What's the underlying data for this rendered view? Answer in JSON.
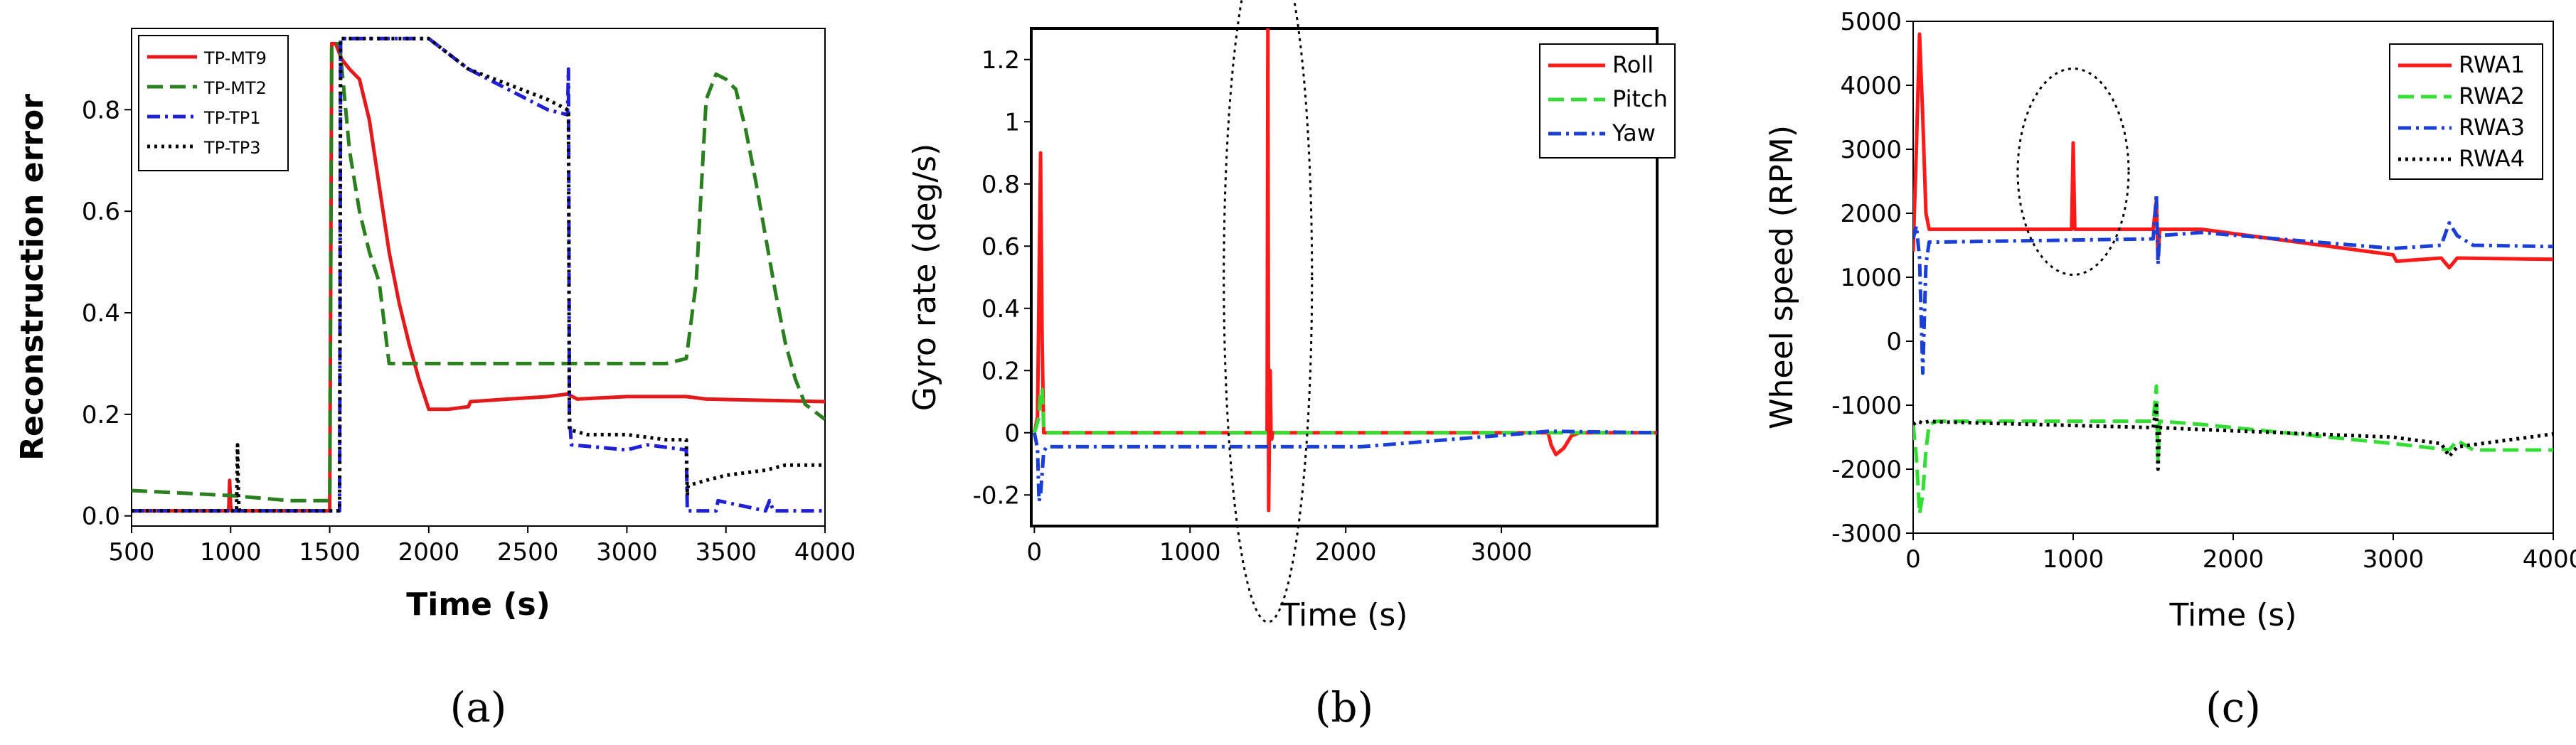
{
  "chart_data": [
    {
      "type": "line",
      "caption": "(a)",
      "title": "",
      "xlabel": "Time  (s)",
      "ylabel": "Reconstruction error",
      "xlim": [
        500,
        4000
      ],
      "ylim": [
        -0.02,
        0.96
      ],
      "xticks": [
        "500",
        "1000",
        "1500",
        "2000",
        "2500",
        "3000",
        "3500",
        "4000"
      ],
      "yticks": [
        "0.0",
        "0.2",
        "0.4",
        "0.6",
        "0.8"
      ],
      "legend_position": "top-left",
      "series": [
        {
          "name": "TP-MT9",
          "color": "#e31a1c",
          "dash": "solid",
          "x": [
            500,
            990,
            995,
            1000,
            1005,
            1010,
            1500,
            1510,
            1530,
            1560,
            1600,
            1650,
            1700,
            1750,
            1800,
            1850,
            1900,
            1950,
            2000,
            2100,
            2200,
            2210,
            2400,
            2600,
            2700,
            2750,
            3000,
            3300,
            3400,
            4000
          ],
          "y": [
            0.01,
            0.01,
            0.07,
            0.02,
            0.01,
            0.01,
            0.01,
            0.93,
            0.93,
            0.9,
            0.88,
            0.86,
            0.78,
            0.65,
            0.52,
            0.42,
            0.34,
            0.27,
            0.21,
            0.21,
            0.215,
            0.225,
            0.23,
            0.235,
            0.24,
            0.23,
            0.235,
            0.235,
            0.23,
            0.225
          ]
        },
        {
          "name": "TP-MT2",
          "color": "#2a7f1f",
          "dash": "dashed",
          "x": [
            500,
            1000,
            1300,
            1500,
            1510,
            1550,
            1600,
            1650,
            1700,
            1750,
            1800,
            2000,
            2500,
            3200,
            3300,
            3350,
            3400,
            3450,
            3500,
            3550,
            3600,
            3650,
            3700,
            3750,
            3800,
            3850,
            3900,
            4000
          ],
          "y": [
            0.05,
            0.04,
            0.03,
            0.03,
            0.93,
            0.93,
            0.72,
            0.6,
            0.52,
            0.46,
            0.3,
            0.3,
            0.3,
            0.3,
            0.31,
            0.46,
            0.82,
            0.87,
            0.86,
            0.84,
            0.76,
            0.66,
            0.55,
            0.44,
            0.34,
            0.27,
            0.22,
            0.19
          ]
        },
        {
          "name": "TP-TP1",
          "color": "#1f1fd6",
          "dash": "dashdot",
          "x": [
            500,
            1550,
            1555,
            1560,
            1600,
            2000,
            2200,
            2400,
            2600,
            2700,
            2705,
            2710,
            2720,
            3000,
            3100,
            3300,
            3305,
            3310,
            3400,
            3450,
            3460,
            3700,
            3720,
            3740,
            4000
          ],
          "y": [
            0.01,
            0.01,
            0.94,
            0.94,
            0.94,
            0.94,
            0.88,
            0.84,
            0.8,
            0.79,
            0.88,
            0.2,
            0.14,
            0.13,
            0.14,
            0.13,
            0.01,
            0.01,
            0.01,
            0.01,
            0.03,
            0.01,
            0.03,
            0.01,
            0.01
          ]
        },
        {
          "name": "TP-TP3",
          "color": "#000000",
          "dash": "dotted",
          "x": [
            500,
            1030,
            1035,
            1040,
            1045,
            1050,
            1550,
            1555,
            1560,
            1600,
            2000,
            2200,
            2400,
            2600,
            2700,
            2705,
            2710,
            2800,
            3000,
            3200,
            3300,
            3305,
            3310,
            3400,
            3500,
            3700,
            3800,
            4000
          ],
          "y": [
            0.01,
            0.01,
            0.14,
            0.03,
            0.01,
            0.01,
            0.01,
            0.94,
            0.94,
            0.94,
            0.94,
            0.88,
            0.85,
            0.82,
            0.8,
            0.8,
            0.17,
            0.16,
            0.16,
            0.15,
            0.15,
            0.04,
            0.06,
            0.07,
            0.08,
            0.09,
            0.1,
            0.1
          ]
        }
      ]
    },
    {
      "type": "line",
      "caption": "(b)",
      "title": "",
      "xlabel": "Time  (s)",
      "ylabel": "Gyro rate  (deg/s)",
      "xlim": [
        -20,
        4000
      ],
      "ylim": [
        -0.3,
        1.3
      ],
      "xticks": [
        "0",
        "1000",
        "2000",
        "3000"
      ],
      "yticks": [
        "-0.2",
        "0",
        "0.2",
        "0.4",
        "0.6",
        "0.8",
        "1",
        "1.2"
      ],
      "legend_position": "top-right",
      "annotation": "dotted ellipse highlighting roll spike near 1500 s",
      "series": [
        {
          "name": "Roll",
          "color": "#ff1a1a",
          "dash": "solid",
          "x": [
            0,
            20,
            40,
            50,
            60,
            80,
            100,
            1495,
            1500,
            1505,
            1510,
            1515,
            1520,
            1525,
            1530,
            3300,
            3320,
            3350,
            3400,
            3450,
            3500,
            4000
          ],
          "y": [
            0.0,
            0.05,
            0.9,
            0.3,
            0.0,
            0.0,
            0.0,
            0.0,
            1.3,
            -0.25,
            0.0,
            0.2,
            0.0,
            -0.02,
            0.0,
            0.0,
            -0.04,
            -0.07,
            -0.05,
            -0.01,
            0.0,
            0.0
          ]
        },
        {
          "name": "Pitch",
          "color": "#33dd33",
          "dash": "dashed",
          "x": [
            0,
            30,
            40,
            50,
            60,
            70,
            100,
            4000
          ],
          "y": [
            0.0,
            0.05,
            0.14,
            0.14,
            0.02,
            0.0,
            0.0,
            0.0
          ]
        },
        {
          "name": "Yaw",
          "color": "#1a3fd6",
          "dash": "dashdot",
          "x": [
            0,
            20,
            30,
            40,
            60,
            80,
            2100,
            3200,
            3300,
            4000
          ],
          "y": [
            0.0,
            -0.05,
            -0.22,
            -0.2,
            -0.06,
            -0.045,
            -0.045,
            0.0,
            0.005,
            0.0
          ]
        }
      ]
    },
    {
      "type": "line",
      "caption": "(c)",
      "title": "",
      "xlabel": "Time  (s)",
      "ylabel": "Wheel speed  (RPM)",
      "xlim": [
        0,
        4000
      ],
      "ylim": [
        -3000,
        5000
      ],
      "xticks": [
        "0",
        "1000",
        "2000",
        "3000",
        "4000"
      ],
      "yticks": [
        "-3000",
        "-2000",
        "-1000",
        "0",
        "1000",
        "2000",
        "3000",
        "4000",
        "5000"
      ],
      "legend_position": "top-right",
      "annotation": "dotted ellipse highlighting RWA1 spike near 1000 s",
      "series": [
        {
          "name": "RWA1",
          "color": "#ff1a1a",
          "dash": "solid",
          "x": [
            0,
            20,
            40,
            60,
            80,
            100,
            150,
            990,
            1000,
            1010,
            1500,
            1520,
            1530,
            1540,
            1800,
            3000,
            3020,
            3300,
            3350,
            3400,
            4000
          ],
          "y": [
            1400,
            3000,
            4800,
            3500,
            2000,
            1750,
            1750,
            1750,
            3100,
            1750,
            1750,
            2200,
            1300,
            1750,
            1750,
            1350,
            1250,
            1300,
            1150,
            1300,
            1280
          ]
        },
        {
          "name": "RWA2",
          "color": "#33dd33",
          "dash": "dashed",
          "x": [
            0,
            20,
            40,
            60,
            80,
            100,
            150,
            1500,
            1520,
            1530,
            1540,
            1800,
            3000,
            3350,
            3400,
            3500,
            4000
          ],
          "y": [
            -1300,
            -1800,
            -2700,
            -2400,
            -1700,
            -1300,
            -1250,
            -1250,
            -700,
            -1900,
            -1250,
            -1300,
            -1600,
            -1700,
            -1550,
            -1700,
            -1700
          ]
        },
        {
          "name": "RWA3",
          "color": "#1a3fd6",
          "dash": "dashdot",
          "x": [
            0,
            20,
            40,
            60,
            80,
            100,
            150,
            1500,
            1520,
            1530,
            1540,
            1800,
            3000,
            3300,
            3350,
            3400,
            3500,
            4000
          ],
          "y": [
            1600,
            1800,
            1300,
            -500,
            1200,
            1550,
            1550,
            1600,
            2300,
            1200,
            1650,
            1700,
            1450,
            1500,
            1850,
            1650,
            1500,
            1480
          ]
        },
        {
          "name": "RWA4",
          "color": "#000000",
          "dash": "dotted",
          "x": [
            0,
            30,
            60,
            100,
            150,
            1500,
            1520,
            1530,
            1540,
            1800,
            3000,
            3300,
            3350,
            3400,
            4000
          ],
          "y": [
            -1300,
            -1250,
            -1280,
            -1250,
            -1260,
            -1350,
            -1000,
            -2000,
            -1350,
            -1380,
            -1500,
            -1600,
            -1800,
            -1650,
            -1450
          ]
        }
      ]
    }
  ]
}
